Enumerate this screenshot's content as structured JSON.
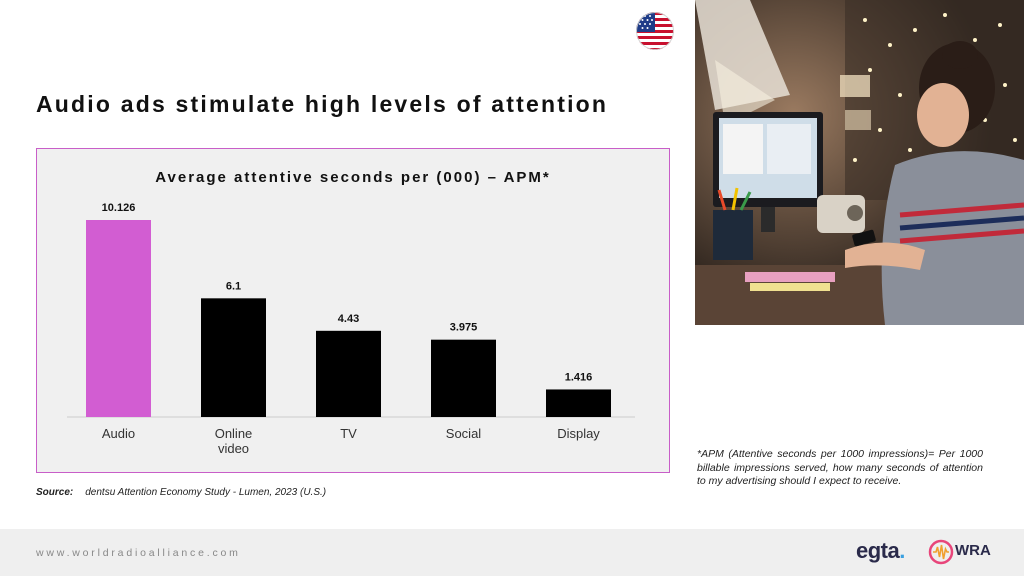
{
  "header": {
    "title": "Audio ads stimulate high levels of attention"
  },
  "chart_data": {
    "type": "bar",
    "title": "Average attentive seconds per (000) – APM*",
    "categories": [
      "Audio",
      "Online video",
      "TV",
      "Social",
      "Display"
    ],
    "values": [
      10.126,
      6.1,
      4.43,
      3.975,
      1.416
    ],
    "value_labels": [
      "10.126",
      "6.1",
      "4.43",
      "3.975",
      "1.416"
    ],
    "colors": [
      "#d25dd2",
      "#000000",
      "#000000",
      "#000000",
      "#000000"
    ],
    "ylim": [
      0,
      10.126
    ],
    "grid": false
  },
  "source": {
    "label": "Source:",
    "text": "dentsu Attention Economy Study - Lumen, 2023 (U.S.)"
  },
  "footnote": "*APM (Attentive seconds per 1000 impressions)= Per 1000 billable impressions served, how many seconds of attention to my advertising should I expect to receive.",
  "footer": {
    "website": "www.worldradioalliance.com",
    "logo_egta": "egta",
    "logo_wra": "WRA"
  },
  "icons": {
    "flag": "us-flag-icon",
    "photo": "woman-at-desk-photo"
  }
}
